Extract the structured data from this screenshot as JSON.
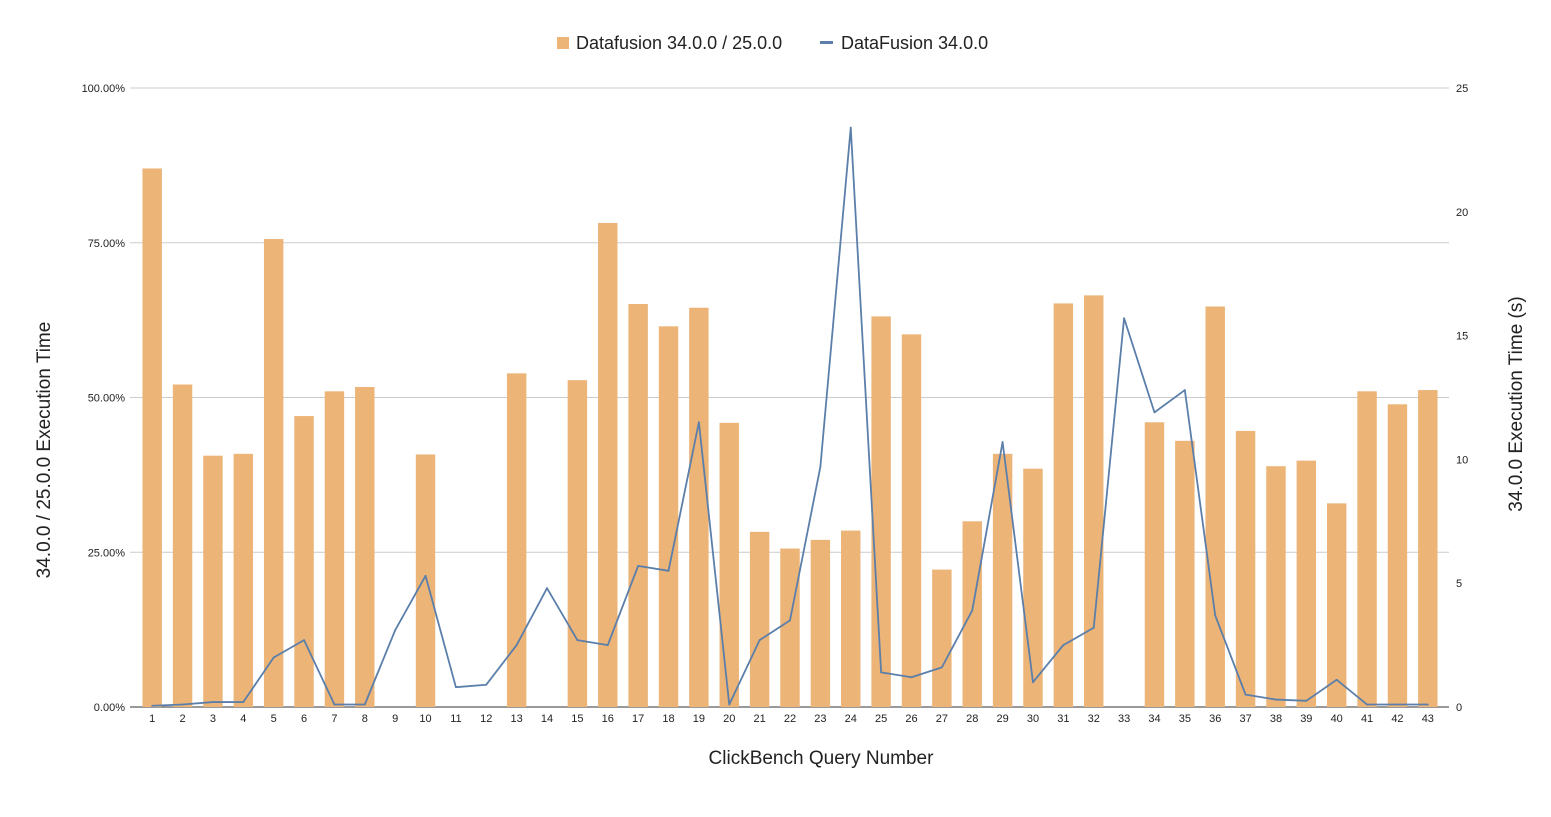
{
  "colors": {
    "bar": "#ECB477",
    "line": "#5B7FAA",
    "grid": "#CCCCCC",
    "text": "#222222"
  },
  "chart_data": {
    "type": "bar",
    "categories": [
      "1",
      "2",
      "3",
      "4",
      "5",
      "6",
      "7",
      "8",
      "9",
      "10",
      "11",
      "12",
      "13",
      "14",
      "15",
      "16",
      "17",
      "18",
      "19",
      "20",
      "21",
      "22",
      "23",
      "24",
      "25",
      "26",
      "27",
      "28",
      "29",
      "30",
      "31",
      "32",
      "33",
      "34",
      "35",
      "36",
      "37",
      "38",
      "39",
      "40",
      "41",
      "42",
      "43"
    ],
    "xlabel": "ClickBench Query Number",
    "ylabel": "34.0.0 / 25.0.0 Execution Time",
    "y2label": "34.0.0 Execution Time (s)",
    "ylim": [
      0,
      100
    ],
    "y2lim": [
      0,
      25
    ],
    "yticks": [
      "0.00%",
      "25.00%",
      "50.00%",
      "75.00%",
      "100.00%"
    ],
    "y2ticks": [
      "0",
      "5",
      "10",
      "15",
      "20",
      "25"
    ],
    "legend_position": "top-center",
    "grid": true,
    "series": [
      {
        "name": "Datafusion 34.0.0 / 25.0.0",
        "type": "bar",
        "axis": "left",
        "values": [
          87.0,
          52.1,
          40.6,
          40.9,
          75.6,
          47.0,
          51.0,
          51.7,
          null,
          40.8,
          null,
          null,
          53.9,
          null,
          52.8,
          78.2,
          65.1,
          61.5,
          64.5,
          45.9,
          28.3,
          25.6,
          27.0,
          28.5,
          63.1,
          60.2,
          22.2,
          30.0,
          40.9,
          38.5,
          65.2,
          66.5,
          null,
          46.0,
          43.0,
          64.7,
          44.6,
          38.9,
          39.8,
          32.9,
          51.0,
          48.9,
          51.2
        ]
      },
      {
        "name": "DataFusion 34.0.0",
        "type": "line",
        "axis": "right",
        "values": [
          0.05,
          0.1,
          0.2,
          0.2,
          2.0,
          2.7,
          0.1,
          0.1,
          3.1,
          5.3,
          0.8,
          0.9,
          2.5,
          4.8,
          2.7,
          2.5,
          5.7,
          5.5,
          11.5,
          0.1,
          2.7,
          3.5,
          9.7,
          23.4,
          1.4,
          1.2,
          1.6,
          3.9,
          10.7,
          1.0,
          2.5,
          3.2,
          15.7,
          11.9,
          12.8,
          3.7,
          0.5,
          0.3,
          0.25,
          1.1,
          0.1,
          0.1,
          0.1
        ]
      }
    ]
  }
}
